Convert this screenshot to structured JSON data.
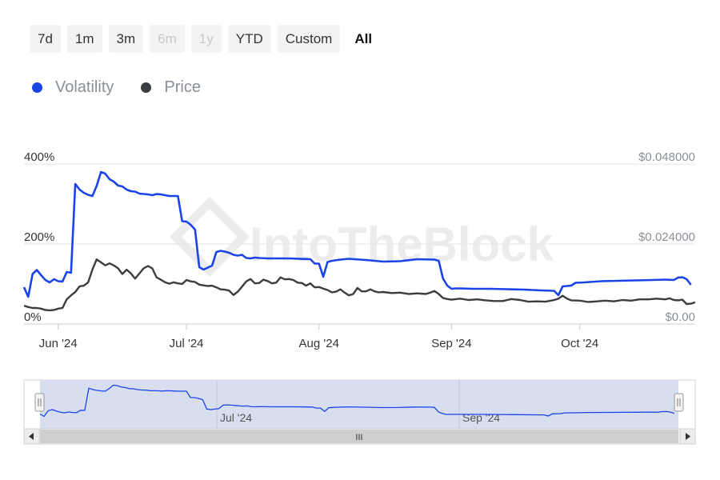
{
  "range_selector": {
    "buttons": [
      {
        "label": "7d",
        "state": "enabled"
      },
      {
        "label": "1m",
        "state": "enabled"
      },
      {
        "label": "3m",
        "state": "enabled"
      },
      {
        "label": "6m",
        "state": "disabled"
      },
      {
        "label": "1y",
        "state": "disabled"
      },
      {
        "label": "YTD",
        "state": "enabled"
      },
      {
        "label": "Custom",
        "state": "enabled"
      },
      {
        "label": "All",
        "state": "active"
      }
    ]
  },
  "watermark": "IntoTheBlock",
  "navigator": {
    "labels": [
      "Jul '24",
      "Sep '24"
    ],
    "scroll_grip": "III"
  },
  "colors": {
    "volatility": "#1a44e8",
    "price": "#3a3d42",
    "grid": "#e6e6e6",
    "navigator_fill": "#d6def0"
  },
  "icons": {
    "scroll_left": "triangle-left-icon",
    "scroll_right": "triangle-right-icon",
    "handle": "navigator-handle-icon"
  },
  "chart_data": {
    "type": "line",
    "x_axis_labels": [
      "Jun '24",
      "Jul '24",
      "Aug '24",
      "Sep '24",
      "Oct '24"
    ],
    "x_range": [
      "2024-05-24",
      "2024-10-28"
    ],
    "y_left": {
      "ticks": [
        "0%",
        "200%",
        "400%"
      ],
      "range": [
        0,
        400
      ],
      "unit": "%"
    },
    "y_right": {
      "ticks": [
        "$0.00",
        "$0.024000",
        "$0.048000"
      ],
      "range": [
        0,
        0.048
      ],
      "unit": "$"
    },
    "grid": true,
    "legend_position": "top-left",
    "series": [
      {
        "name": "Volatility",
        "axis": "left",
        "points": [
          [
            "2024-05-24",
            92
          ],
          [
            "2024-05-25",
            68
          ],
          [
            "2024-05-26",
            125
          ],
          [
            "2024-05-27",
            135
          ],
          [
            "2024-05-28",
            122
          ],
          [
            "2024-05-29",
            110
          ],
          [
            "2024-05-30",
            104
          ],
          [
            "2024-05-31",
            112
          ],
          [
            "2024-06-01",
            107
          ],
          [
            "2024-06-02",
            106
          ],
          [
            "2024-06-03",
            130
          ],
          [
            "2024-06-04",
            128
          ],
          [
            "2024-06-05",
            350
          ],
          [
            "2024-06-06",
            336
          ],
          [
            "2024-06-07",
            328
          ],
          [
            "2024-06-08",
            323
          ],
          [
            "2024-06-09",
            320
          ],
          [
            "2024-06-10",
            345
          ],
          [
            "2024-06-11",
            380
          ],
          [
            "2024-06-12",
            376
          ],
          [
            "2024-06-13",
            362
          ],
          [
            "2024-06-14",
            356
          ],
          [
            "2024-06-15",
            346
          ],
          [
            "2024-06-16",
            344
          ],
          [
            "2024-06-17",
            336
          ],
          [
            "2024-06-18",
            332
          ],
          [
            "2024-06-19",
            331
          ],
          [
            "2024-06-20",
            326
          ],
          [
            "2024-06-21",
            325
          ],
          [
            "2024-06-22",
            324
          ],
          [
            "2024-06-23",
            322
          ],
          [
            "2024-06-24",
            325
          ],
          [
            "2024-06-25",
            324
          ],
          [
            "2024-06-26",
            322
          ],
          [
            "2024-06-27",
            320
          ],
          [
            "2024-06-28",
            320
          ],
          [
            "2024-06-29",
            320
          ],
          [
            "2024-06-30",
            257
          ],
          [
            "2024-07-01",
            256
          ],
          [
            "2024-07-02",
            248
          ],
          [
            "2024-07-03",
            236
          ],
          [
            "2024-07-04",
            142
          ],
          [
            "2024-07-05",
            136
          ],
          [
            "2024-07-06",
            141
          ],
          [
            "2024-07-07",
            146
          ],
          [
            "2024-07-08",
            180
          ],
          [
            "2024-07-09",
            183
          ],
          [
            "2024-07-10",
            181
          ],
          [
            "2024-07-11",
            178
          ],
          [
            "2024-07-12",
            173
          ],
          [
            "2024-07-13",
            171
          ],
          [
            "2024-07-14",
            173
          ],
          [
            "2024-07-15",
            165
          ],
          [
            "2024-07-16",
            164
          ],
          [
            "2024-07-17",
            166
          ],
          [
            "2024-07-18",
            165
          ],
          [
            "2024-07-20",
            164
          ],
          [
            "2024-07-25",
            164
          ],
          [
            "2024-07-30",
            162
          ],
          [
            "2024-07-31",
            151
          ],
          [
            "2024-08-01",
            151
          ],
          [
            "2024-08-02",
            118
          ],
          [
            "2024-08-03",
            155
          ],
          [
            "2024-08-04",
            158
          ],
          [
            "2024-08-06",
            161
          ],
          [
            "2024-08-08",
            163
          ],
          [
            "2024-08-12",
            160
          ],
          [
            "2024-08-16",
            156
          ],
          [
            "2024-08-20",
            157
          ],
          [
            "2024-08-24",
            162
          ],
          [
            "2024-08-28",
            161
          ],
          [
            "2024-08-29",
            158
          ],
          [
            "2024-08-30",
            114
          ],
          [
            "2024-08-31",
            96
          ],
          [
            "2024-09-01",
            88
          ],
          [
            "2024-09-02",
            89
          ],
          [
            "2024-09-03",
            89
          ],
          [
            "2024-09-06",
            88
          ],
          [
            "2024-09-10",
            88
          ],
          [
            "2024-09-14",
            87
          ],
          [
            "2024-09-18",
            86
          ],
          [
            "2024-09-22",
            84
          ],
          [
            "2024-09-25",
            83
          ],
          [
            "2024-09-26",
            72
          ],
          [
            "2024-09-27",
            94
          ],
          [
            "2024-09-29",
            96
          ],
          [
            "2024-09-30",
            103
          ],
          [
            "2024-10-02",
            104
          ],
          [
            "2024-10-06",
            107
          ],
          [
            "2024-10-10",
            108
          ],
          [
            "2024-10-14",
            109
          ],
          [
            "2024-10-18",
            110
          ],
          [
            "2024-10-21",
            111
          ],
          [
            "2024-10-23",
            110
          ],
          [
            "2024-10-24",
            116
          ],
          [
            "2024-10-25",
            117
          ],
          [
            "2024-10-26",
            112
          ],
          [
            "2024-10-27",
            98
          ]
        ]
      },
      {
        "name": "Price",
        "axis": "right",
        "points": [
          [
            "2024-05-24",
            0.0055
          ],
          [
            "2024-05-25",
            0.0051
          ],
          [
            "2024-05-26",
            0.0048
          ],
          [
            "2024-05-27",
            0.0048
          ],
          [
            "2024-05-28",
            0.0046
          ],
          [
            "2024-05-29",
            0.0042
          ],
          [
            "2024-05-30",
            0.0041
          ],
          [
            "2024-05-31",
            0.0042
          ],
          [
            "2024-06-01",
            0.0046
          ],
          [
            "2024-06-02",
            0.0048
          ],
          [
            "2024-06-03",
            0.0074
          ],
          [
            "2024-06-04",
            0.0086
          ],
          [
            "2024-06-05",
            0.0096
          ],
          [
            "2024-06-06",
            0.0113
          ],
          [
            "2024-06-07",
            0.0115
          ],
          [
            "2024-06-08",
            0.0125
          ],
          [
            "2024-06-09",
            0.0163
          ],
          [
            "2024-06-10",
            0.0194
          ],
          [
            "2024-06-11",
            0.0185
          ],
          [
            "2024-06-12",
            0.0176
          ],
          [
            "2024-06-13",
            0.0182
          ],
          [
            "2024-06-14",
            0.0176
          ],
          [
            "2024-06-15",
            0.0167
          ],
          [
            "2024-06-16",
            0.015
          ],
          [
            "2024-06-17",
            0.0163
          ],
          [
            "2024-06-18",
            0.0152
          ],
          [
            "2024-06-19",
            0.0136
          ],
          [
            "2024-06-20",
            0.0152
          ],
          [
            "2024-06-21",
            0.0167
          ],
          [
            "2024-06-22",
            0.0174
          ],
          [
            "2024-06-23",
            0.0167
          ],
          [
            "2024-06-24",
            0.014
          ],
          [
            "2024-06-25",
            0.0133
          ],
          [
            "2024-06-26",
            0.0125
          ],
          [
            "2024-06-27",
            0.0121
          ],
          [
            "2024-06-28",
            0.0125
          ],
          [
            "2024-06-29",
            0.0122
          ],
          [
            "2024-06-30",
            0.012
          ],
          [
            "2024-07-01",
            0.0132
          ],
          [
            "2024-07-02",
            0.0128
          ],
          [
            "2024-07-03",
            0.0126
          ],
          [
            "2024-07-04",
            0.0118
          ],
          [
            "2024-07-05",
            0.0116
          ],
          [
            "2024-07-06",
            0.0114
          ],
          [
            "2024-07-07",
            0.0115
          ],
          [
            "2024-07-08",
            0.011
          ],
          [
            "2024-07-09",
            0.0104
          ],
          [
            "2024-07-10",
            0.0103
          ],
          [
            "2024-07-11",
            0.01
          ],
          [
            "2024-07-12",
            0.0087
          ],
          [
            "2024-07-13",
            0.0097
          ],
          [
            "2024-07-14",
            0.0112
          ],
          [
            "2024-07-15",
            0.0128
          ],
          [
            "2024-07-16",
            0.0135
          ],
          [
            "2024-07-17",
            0.0122
          ],
          [
            "2024-07-18",
            0.0123
          ],
          [
            "2024-07-19",
            0.0133
          ],
          [
            "2024-07-20",
            0.0129
          ],
          [
            "2024-07-21",
            0.0122
          ],
          [
            "2024-07-22",
            0.0124
          ],
          [
            "2024-07-23",
            0.014
          ],
          [
            "2024-07-24",
            0.0134
          ],
          [
            "2024-07-25",
            0.0135
          ],
          [
            "2024-07-26",
            0.0132
          ],
          [
            "2024-07-27",
            0.0124
          ],
          [
            "2024-07-28",
            0.0123
          ],
          [
            "2024-07-29",
            0.0115
          ],
          [
            "2024-07-30",
            0.0122
          ],
          [
            "2024-07-31",
            0.011
          ],
          [
            "2024-08-01",
            0.0111
          ],
          [
            "2024-08-02",
            0.0106
          ],
          [
            "2024-08-03",
            0.0102
          ],
          [
            "2024-08-04",
            0.0095
          ],
          [
            "2024-08-05",
            0.0097
          ],
          [
            "2024-08-06",
            0.0104
          ],
          [
            "2024-08-07",
            0.0094
          ],
          [
            "2024-08-08",
            0.0086
          ],
          [
            "2024-08-09",
            0.009
          ],
          [
            "2024-08-10",
            0.0108
          ],
          [
            "2024-08-11",
            0.0098
          ],
          [
            "2024-08-12",
            0.0098
          ],
          [
            "2024-08-13",
            0.0104
          ],
          [
            "2024-08-14",
            0.0098
          ],
          [
            "2024-08-15",
            0.0095
          ],
          [
            "2024-08-16",
            0.0096
          ],
          [
            "2024-08-18",
            0.0093
          ],
          [
            "2024-08-20",
            0.0094
          ],
          [
            "2024-08-22",
            0.009
          ],
          [
            "2024-08-24",
            0.0092
          ],
          [
            "2024-08-26",
            0.009
          ],
          [
            "2024-08-27",
            0.0094
          ],
          [
            "2024-08-28",
            0.0099
          ],
          [
            "2024-08-29",
            0.009
          ],
          [
            "2024-08-30",
            0.0078
          ],
          [
            "2024-08-31",
            0.0075
          ],
          [
            "2024-09-01",
            0.0073
          ],
          [
            "2024-09-03",
            0.0076
          ],
          [
            "2024-09-05",
            0.0072
          ],
          [
            "2024-09-07",
            0.0074
          ],
          [
            "2024-09-09",
            0.0071
          ],
          [
            "2024-09-11",
            0.0069
          ],
          [
            "2024-09-13",
            0.0069
          ],
          [
            "2024-09-15",
            0.0075
          ],
          [
            "2024-09-17",
            0.0072
          ],
          [
            "2024-09-19",
            0.0067
          ],
          [
            "2024-09-21",
            0.0068
          ],
          [
            "2024-09-23",
            0.0067
          ],
          [
            "2024-09-25",
            0.0072
          ],
          [
            "2024-09-26",
            0.0076
          ],
          [
            "2024-09-27",
            0.0085
          ],
          [
            "2024-09-28",
            0.0076
          ],
          [
            "2024-09-29",
            0.0071
          ],
          [
            "2024-10-01",
            0.007
          ],
          [
            "2024-10-03",
            0.0066
          ],
          [
            "2024-10-05",
            0.0068
          ],
          [
            "2024-10-07",
            0.007
          ],
          [
            "2024-10-09",
            0.0068
          ],
          [
            "2024-10-11",
            0.0072
          ],
          [
            "2024-10-13",
            0.007
          ],
          [
            "2024-10-15",
            0.0074
          ],
          [
            "2024-10-17",
            0.0074
          ],
          [
            "2024-10-19",
            0.0076
          ],
          [
            "2024-10-21",
            0.0074
          ],
          [
            "2024-10-22",
            0.0077
          ],
          [
            "2024-10-23",
            0.0072
          ],
          [
            "2024-10-24",
            0.0071
          ],
          [
            "2024-10-25",
            0.0073
          ],
          [
            "2024-10-26",
            0.006
          ],
          [
            "2024-10-27",
            0.0061
          ],
          [
            "2024-10-28",
            0.0065
          ]
        ]
      }
    ]
  }
}
